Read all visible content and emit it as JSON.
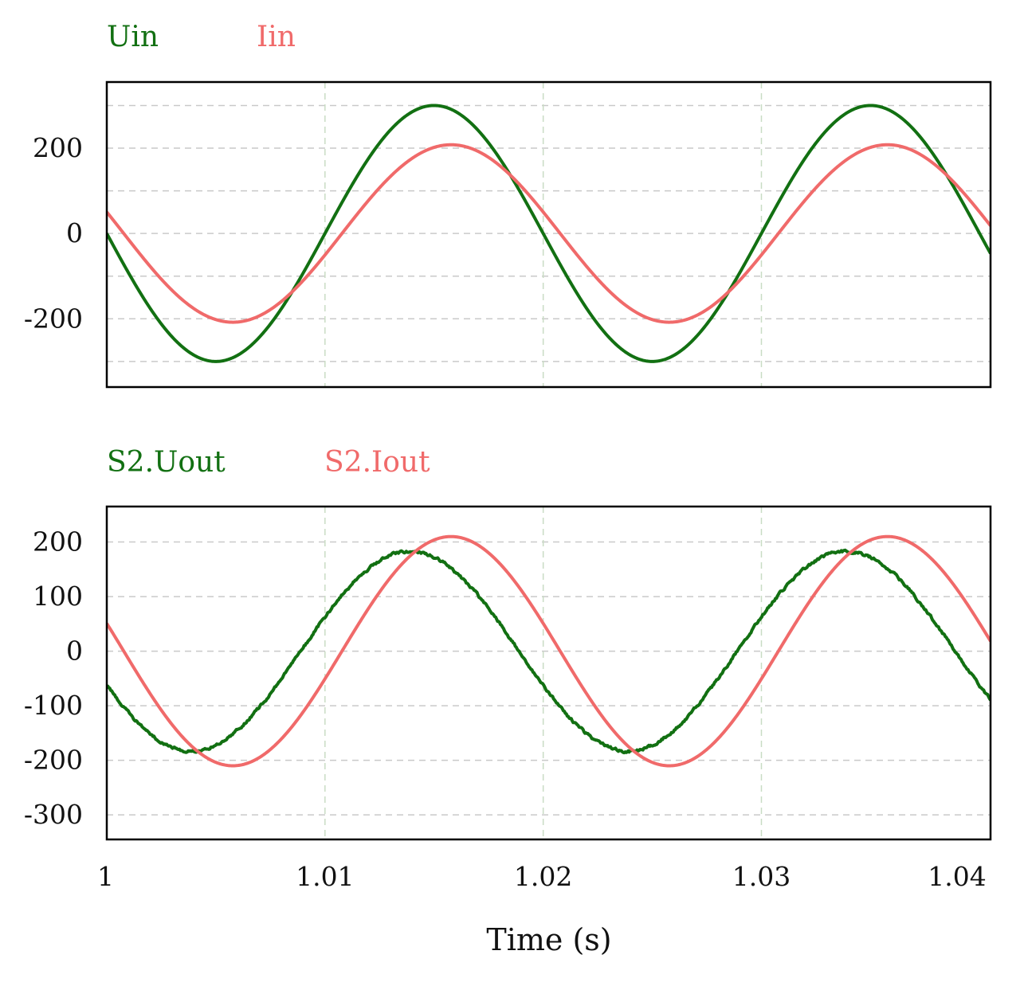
{
  "colors": {
    "green": "#127012",
    "red": "#f06a6a",
    "grid": "#c9c9c9",
    "vgrid": "#c9dcc4",
    "frame": "#000000"
  },
  "chart_data": [
    {
      "type": "line",
      "title": "",
      "xlabel": "",
      "ylabel": "",
      "xlim": [
        1.0,
        1.0405
      ],
      "ylim": [
        -360,
        355
      ],
      "yticks": [
        "200",
        "0",
        "-200"
      ],
      "ytick_values": [
        200,
        0,
        -200
      ],
      "hgrid": [
        300,
        200,
        100,
        0,
        -100,
        -200,
        -300
      ],
      "xgrid": [
        1.01,
        1.02,
        1.03
      ],
      "grid": true,
      "legend": "top-left",
      "series": [
        {
          "name": "Uin",
          "color": "#127012",
          "amplitude": 300,
          "frequency": 50,
          "phase_deg": 180,
          "offset": 0,
          "noise": 0
        },
        {
          "name": "Iin",
          "color": "#f06a6a",
          "amplitude": 208,
          "frequency": 50,
          "phase_deg": 166,
          "offset": 0,
          "noise": 0
        }
      ]
    },
    {
      "type": "line",
      "title": "",
      "xlabel": "Time (s)",
      "ylabel": "",
      "xlim": [
        1.0,
        1.0405
      ],
      "ylim": [
        -345,
        265
      ],
      "yticks": [
        "200",
        "100",
        "0",
        "-100",
        "-200",
        "-300"
      ],
      "ytick_values": [
        200,
        100,
        0,
        -100,
        -200,
        -300
      ],
      "xticks": [
        "1",
        "1.01",
        "1.02",
        "1.03",
        "1.04"
      ],
      "xtick_values": [
        1.0,
        1.01,
        1.02,
        1.03,
        1.04
      ],
      "hgrid": [
        200,
        100,
        0,
        -100,
        -200,
        -300
      ],
      "xgrid": [
        1.01,
        1.02,
        1.03
      ],
      "grid": true,
      "legend": "top-left",
      "series": [
        {
          "name": "S2.Uout",
          "color": "#127012",
          "amplitude": 183,
          "frequency": 50,
          "phase_deg": 200,
          "offset": 0,
          "noise": 4
        },
        {
          "name": "S2.Iout",
          "color": "#f06a6a",
          "amplitude": 210,
          "frequency": 50,
          "phase_deg": 166,
          "offset": 0,
          "noise": 0
        }
      ]
    }
  ]
}
